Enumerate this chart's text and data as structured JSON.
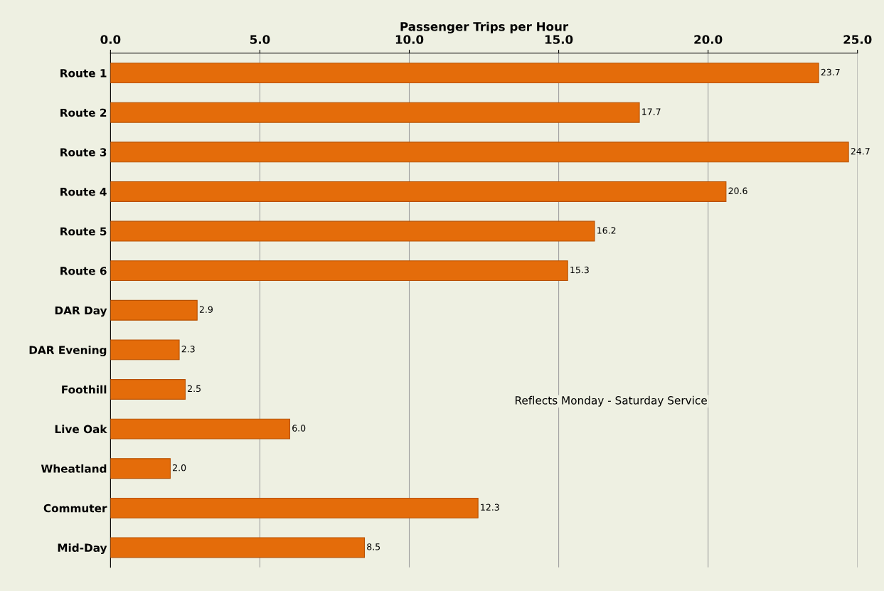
{
  "chart_data": {
    "type": "bar",
    "orientation": "horizontal",
    "xlabel": "Passenger Trips per Hour",
    "categories": [
      "Route 1",
      "Route 2",
      "Route 3",
      "Route 4",
      "Route 5",
      "Route 6",
      "DAR Day",
      "DAR Evening",
      "Foothill",
      "Live Oak",
      "Wheatland",
      "Commuter",
      "Mid-Day"
    ],
    "values": [
      23.7,
      17.7,
      24.7,
      20.6,
      16.2,
      15.3,
      2.9,
      2.3,
      2.5,
      6.0,
      2.0,
      12.3,
      8.5
    ],
    "color": "#e46c0a",
    "xlim": [
      0,
      25
    ],
    "xticks": [
      {
        "value": 0,
        "label": "0.0"
      },
      {
        "value": 5,
        "label": "5.0"
      },
      {
        "value": 10,
        "label": "10.0"
      },
      {
        "value": 15,
        "label": "15.0"
      },
      {
        "value": 20,
        "label": "20.0"
      },
      {
        "value": 25,
        "label": "25.0"
      }
    ],
    "value_labels": [
      "23.7",
      "17.7",
      "24.7",
      "20.6",
      "16.2",
      "15.3",
      "2.9",
      "2.3",
      "2.5",
      "6.0",
      "2.0",
      "12.3",
      "8.5"
    ],
    "grid": "x",
    "annotations": [
      "Reflects Monday - Saturday Service"
    ]
  }
}
